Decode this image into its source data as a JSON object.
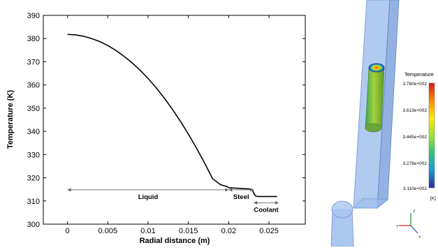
{
  "chart_data": {
    "type": "line",
    "xlabel": "Radial distance (m)",
    "ylabel": "Temperature (K)",
    "xlim": [
      -0.003,
      0.0295
    ],
    "ylim": [
      300,
      390
    ],
    "xticks": [
      0,
      0.005,
      0.01,
      0.015,
      0.02,
      0.025
    ],
    "xtick_labels": [
      "0",
      "0.005",
      "0.01",
      "0.015",
      "0.02",
      "0.025"
    ],
    "yticks": [
      300,
      310,
      320,
      330,
      340,
      350,
      360,
      370,
      380,
      390
    ],
    "ytick_labels": [
      "300",
      "310",
      "320",
      "330",
      "340",
      "350",
      "360",
      "370",
      "380",
      "390"
    ],
    "grid": false,
    "series": [
      {
        "x": [
          0,
          0.001,
          0.002,
          0.003,
          0.004,
          0.005,
          0.006,
          0.007,
          0.008,
          0.009,
          0.01,
          0.011,
          0.012,
          0.013,
          0.014,
          0.015,
          0.016,
          0.017,
          0.018,
          0.019,
          0.0198,
          0.02,
          0.0205,
          0.0215,
          0.0225,
          0.0229,
          0.0231,
          0.0233,
          0.0236,
          0.024,
          0.0245,
          0.025,
          0.0255,
          0.026
        ],
        "y": [
          381.8,
          381.6,
          381.0,
          380.0,
          378.7,
          377.0,
          374.9,
          372.4,
          369.6,
          366.4,
          362.8,
          358.8,
          354.4,
          349.6,
          344.4,
          338.8,
          332.8,
          326.4,
          319.6,
          317.0,
          316.2,
          315.7,
          315.6,
          315.4,
          315.2,
          315.0,
          313.5,
          312.2,
          311.9,
          311.9,
          311.9,
          311.9,
          311.9,
          311.9
        ]
      }
    ],
    "annotations": [
      {
        "label": "Liquid",
        "x_from": 0,
        "x_to": 0.02,
        "y": 314.8
      },
      {
        "label": "Steel",
        "x_from": 0.02,
        "x_to": 0.0231,
        "y": 314.8
      },
      {
        "label": "Coolant",
        "x_from": 0.0231,
        "x_to": 0.0262,
        "y": 309.2
      }
    ]
  },
  "render": {
    "colorbar_title": "Temperature",
    "colorbar_labels": [
      "3.780e+002",
      "3.613e+002",
      "3.445e+002",
      "3.278e+002",
      "3.110e+002"
    ],
    "colorbar_unit": "[K]",
    "colorbar_colors": [
      "#d7191c",
      "#ff8c00",
      "#ffe600",
      "#9be43a",
      "#2ec27e",
      "#1a9bd6",
      "#2d2b9b"
    ],
    "axis_triad_labels": [
      "Z",
      "Y",
      "X"
    ],
    "channel_color": "#7fa7e3",
    "rod_color": "#8dc63f"
  }
}
